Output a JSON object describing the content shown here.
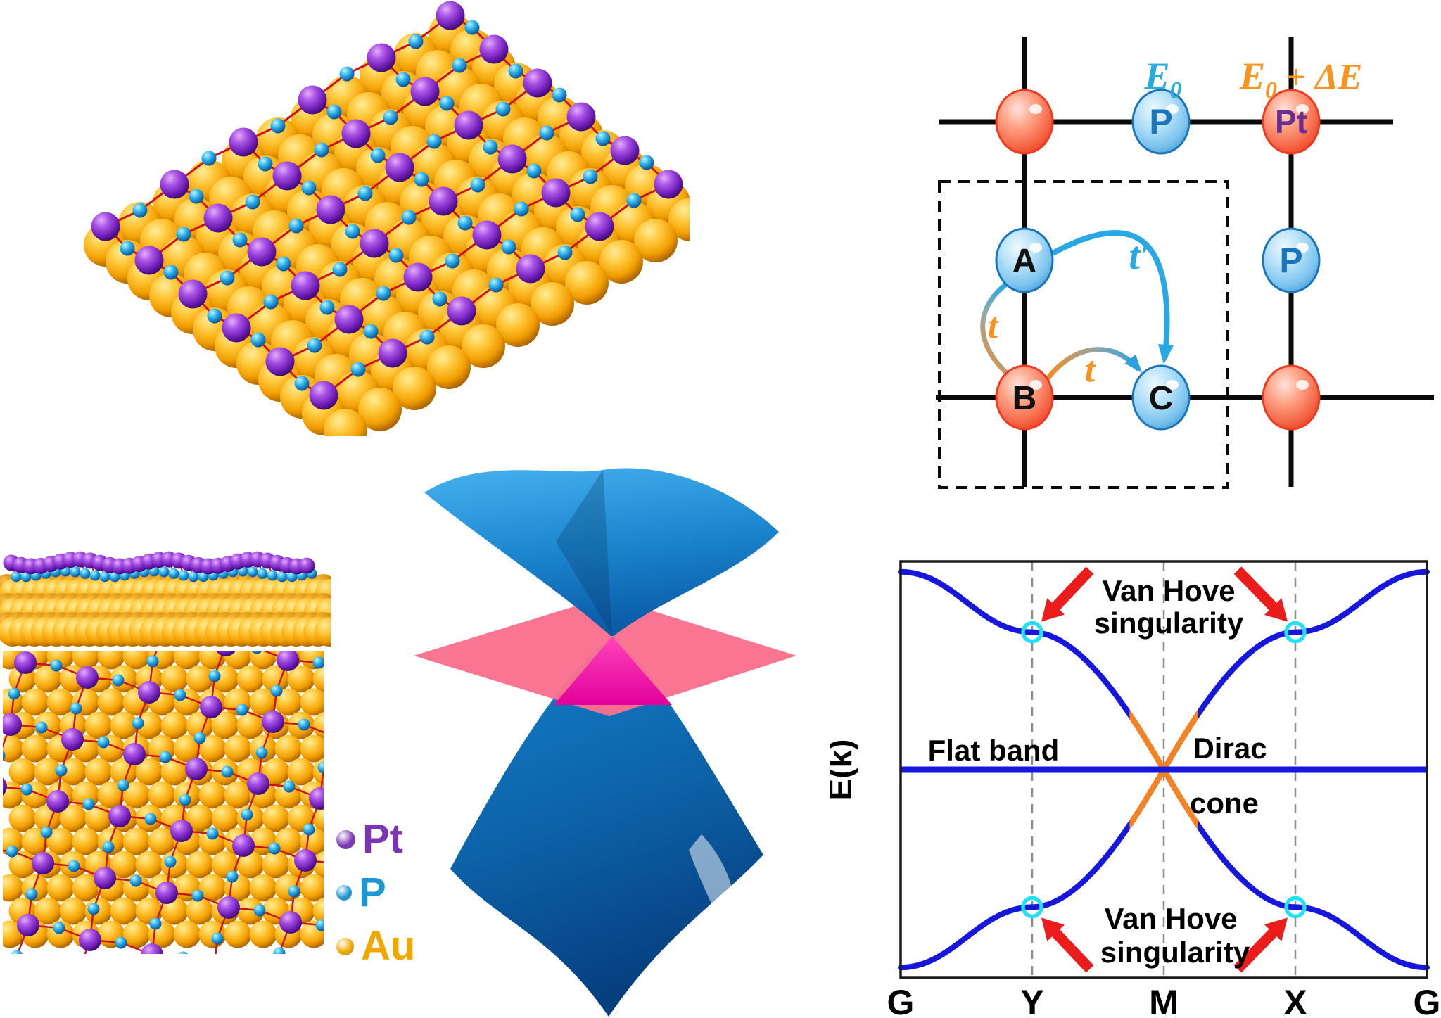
{
  "legend": {
    "items": [
      {
        "label": "Pt",
        "color": "#7b35b4"
      },
      {
        "label": "P",
        "color": "#1e96d2"
      },
      {
        "label": "Au",
        "color": "#f0a800"
      }
    ]
  },
  "materials": {
    "pt_color": "#8a2fd0",
    "p_color": "#1ba7e0",
    "au_color": "#f2a200",
    "bond_color": "#cc1414"
  },
  "lattice_model": {
    "site_labels": {
      "p_top": "P",
      "pt_top": "Pt",
      "a": "A",
      "b": "B",
      "c": "C",
      "p_right": "P"
    },
    "onsite_energy_p": {
      "symbol": "E",
      "sub": "0"
    },
    "onsite_energy_pt": {
      "symbol": "E",
      "sub": "0",
      "plus": "+",
      "delta": "ΔE"
    },
    "hoppings": {
      "t": "t",
      "t_prime": "t′"
    },
    "colors": {
      "p_site_label": "#1b75bb",
      "pt_site_label": "#6a2d91",
      "energy_p": "#29abe2",
      "energy_pt": "#f7941e",
      "hopping_t": "#f7941e",
      "hopping_t_prime": "#29a8e6",
      "lattice_line": "#0a0a0a"
    }
  },
  "cone_plot": {
    "upper_surface_color": "#1b86cf",
    "lower_surface_color": "#0d62a8",
    "plane_color": "#f9718e",
    "cone_tip_color": "#f318a8"
  },
  "chart_data": {
    "type": "line",
    "title": "",
    "ylabel": "E(k)",
    "x_tick_labels": [
      "G",
      "Y",
      "M",
      "X",
      "G"
    ],
    "x_tick_positions": [
      0,
      0.25,
      0.5,
      0.75,
      1
    ],
    "gridlines_at": [
      0.25,
      0.5,
      0.75
    ],
    "grid": "dashed vertical at Y, M, X",
    "ylim": [
      -1,
      1
    ],
    "legend_position": "none",
    "series": [
      {
        "name": "flat band",
        "color": "#1616dd",
        "points": [
          [
            0,
            0
          ],
          [
            1,
            0
          ]
        ]
      },
      {
        "name": "dispersive band G-to-G through Dirac point at M",
        "color": "#1616dd",
        "points": [
          [
            0,
            0.95
          ],
          [
            0.25,
            0.66
          ],
          [
            0.5,
            0
          ],
          [
            0.75,
            -0.66
          ],
          [
            1,
            -0.95
          ]
        ]
      },
      {
        "name": "dispersive band mirror",
        "color": "#1616dd",
        "points": [
          [
            0,
            -0.95
          ],
          [
            0.25,
            -0.66
          ],
          [
            0.5,
            0
          ],
          [
            0.75,
            0.66
          ],
          [
            1,
            0.95
          ]
        ]
      }
    ],
    "dirac_point": [
      0.5,
      0
    ],
    "dirac_cone_highlight": {
      "color": "#f5831f",
      "x_center": 0.5,
      "half_width": 0.065
    },
    "van_hove_points": [
      [
        0.25,
        0.66
      ],
      [
        0.75,
        0.66
      ],
      [
        0.25,
        -0.66
      ],
      [
        0.75,
        -0.66
      ]
    ],
    "van_hove_marker_color": "#25e0f5",
    "arrow_color": "#ea1c1c",
    "annotations": {
      "van_hove_top_line1": "Van Hove",
      "van_hove_top_line2": "singularity",
      "van_hove_bottom_line1": "Van Hove",
      "van_hove_bottom_line2": "singularity",
      "flat_band": "Flat band",
      "dirac_line1": "Dirac",
      "dirac_line2": "cone"
    }
  }
}
